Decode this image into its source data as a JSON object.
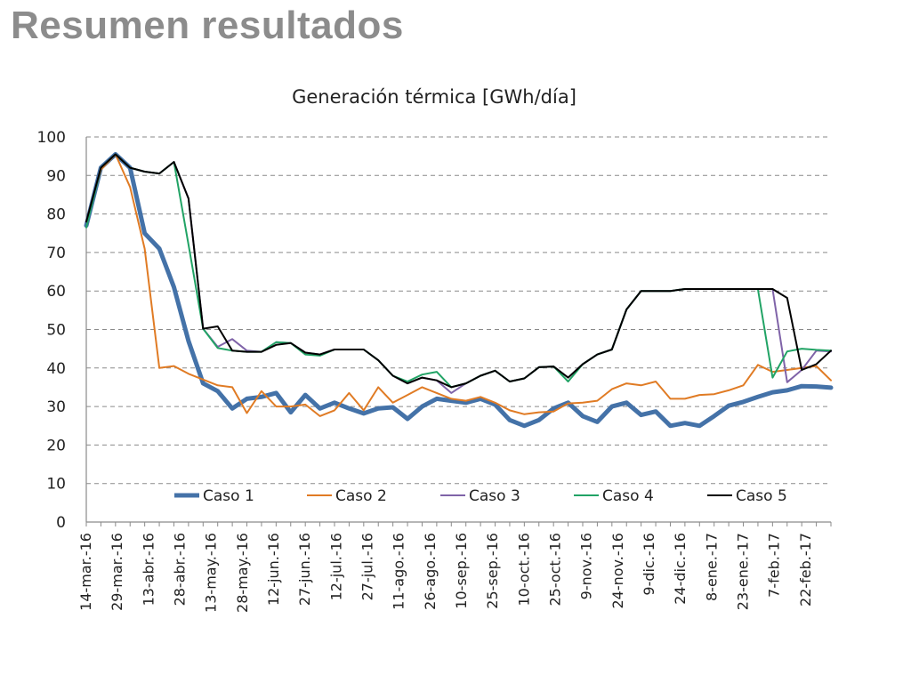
{
  "slide": {
    "title": "Resumen resultados"
  },
  "chart_data": {
    "type": "line",
    "title": "Generación térmica [GWh/día]",
    "xlabel": "",
    "ylabel": "",
    "ylim": [
      0,
      100
    ],
    "yticks": [
      0,
      10,
      20,
      30,
      40,
      50,
      60,
      70,
      80,
      90,
      100
    ],
    "grid": true,
    "legend_position": "bottom",
    "x_tick_labels": [
      "14-mar.-16",
      "29-mar.-16",
      "13-abr.-16",
      "28-abr.-16",
      "13-may.-16",
      "28-may.-16",
      "12-jun.-16",
      "27-jun.-16",
      "12-jul.-16",
      "27-jul.-16",
      "11-ago.-16",
      "26-ago.-16",
      "10-sep.-16",
      "25-sep.-16",
      "10-oct.-16",
      "25-oct.-16",
      "9-nov.-16",
      "24-nov.-16",
      "9-dic.-16",
      "24-dic.-16",
      "8-ene.-17",
      "23-ene.-17",
      "7-feb.-17",
      "22-feb.-17"
    ],
    "x": [
      "14-mar.-16",
      "21-mar.-16",
      "28-mar.-16",
      "4-abr.-16",
      "11-abr.-16",
      "18-abr.-16",
      "25-abr.-16",
      "2-may.-16",
      "9-may.-16",
      "16-may.-16",
      "23-may.-16",
      "30-may.-16",
      "6-jun.-16",
      "13-jun.-16",
      "20-jun.-16",
      "27-jun.-16",
      "4-jul.-16",
      "11-jul.-16",
      "18-jul.-16",
      "25-jul.-16",
      "1-ago.-16",
      "8-ago.-16",
      "15-ago.-16",
      "22-ago.-16",
      "29-ago.-16",
      "5-sep.-16",
      "12-sep.-16",
      "19-sep.-16",
      "26-sep.-16",
      "3-oct.-16",
      "10-oct.-16",
      "17-oct.-16",
      "24-oct.-16",
      "31-oct.-16",
      "7-nov.-16",
      "14-nov.-16",
      "21-nov.-16",
      "28-nov.-16",
      "5-dic.-16",
      "12-dic.-16",
      "19-dic.-16",
      "26-dic.-16",
      "2-ene.-17",
      "9-ene.-17",
      "16-ene.-17",
      "23-ene.-17",
      "30-ene.-17",
      "6-feb.-17",
      "13-feb.-17",
      "20-feb.-17",
      "27-feb.-17",
      "6-mar.-17"
    ],
    "series": [
      {
        "name": "Caso 1",
        "color": "#4472a8",
        "width": 5,
        "values": [
          77,
          92,
          95.5,
          92,
          75,
          71,
          61,
          47,
          36,
          34,
          29.5,
          32,
          32.5,
          33.5,
          28.5,
          33,
          29.5,
          31,
          29.5,
          28.2,
          29.5,
          29.8,
          26.8,
          30,
          32,
          31.5,
          31,
          32,
          30.5,
          26.5,
          25,
          26.5,
          29.5,
          31,
          27.5,
          26,
          30,
          31,
          27.8,
          28.7,
          25,
          25.7,
          25,
          27.5,
          30.2,
          31.2,
          32.5,
          33.7,
          34.2,
          35.3,
          35.2,
          34.9
        ]
      },
      {
        "name": "Caso 2",
        "color": "#e07b24",
        "width": 2,
        "values": [
          78,
          91.5,
          95.5,
          87,
          71,
          40,
          40.5,
          38.5,
          37,
          35.5,
          35,
          28.3,
          34,
          30,
          30,
          30.5,
          27.5,
          29,
          33.5,
          29,
          35,
          31,
          33,
          35,
          33.5,
          32,
          31.5,
          32.5,
          31,
          29,
          28,
          28.5,
          28.7,
          30.8,
          31,
          31.5,
          34.5,
          36,
          35.5,
          36.5,
          32,
          32,
          33,
          33.2,
          34.2,
          35.5,
          40.8,
          39,
          39.5,
          40,
          40.5,
          36.8
        ]
      },
      {
        "name": "Caso 3",
        "color": "#7f63a8",
        "width": 2,
        "values": [
          78,
          92,
          95.5,
          92,
          91,
          90.5,
          93.5,
          84,
          50.2,
          45.5,
          47.5,
          44.5,
          44.2,
          46.7,
          46.5,
          44,
          43.5,
          44.8,
          44.8,
          44.8,
          42,
          38,
          36,
          37.5,
          36.8,
          33.5,
          36,
          38,
          39.3,
          36.5,
          37.3,
          40.2,
          40.4,
          37.5,
          41,
          43.5,
          44.8,
          55.2,
          60,
          60,
          60,
          60.5,
          60.5,
          60.5,
          60.5,
          60.5,
          60.5,
          60.5,
          36.3,
          39.5,
          44.5,
          44.3
        ]
      },
      {
        "name": "Caso 4",
        "color": "#21a365",
        "width": 2,
        "values": [
          76.5,
          92,
          95.5,
          92,
          91,
          90.5,
          93.5,
          72,
          50.2,
          45.2,
          44.5,
          44.2,
          44.2,
          46.7,
          46.5,
          43.5,
          43.2,
          44.8,
          44.8,
          44.8,
          42,
          38,
          36.5,
          38.3,
          39,
          35,
          36,
          38,
          39.3,
          36.5,
          37.3,
          40.2,
          40.4,
          36.5,
          41,
          43.5,
          44.8,
          55.2,
          60,
          60,
          60,
          60.5,
          60.5,
          60.5,
          60.5,
          60.5,
          60.5,
          37.5,
          44.3,
          45,
          44.7,
          44.5
        ]
      },
      {
        "name": "Caso 5",
        "color": "#000000",
        "width": 2,
        "values": [
          78,
          92,
          95.5,
          92,
          91,
          90.5,
          93.5,
          84,
          50.2,
          50.8,
          44.5,
          44.2,
          44.2,
          46,
          46.5,
          44,
          43.5,
          44.8,
          44.8,
          44.8,
          42,
          38,
          36,
          37.5,
          36.8,
          35,
          36,
          38,
          39.3,
          36.5,
          37.3,
          40.2,
          40.4,
          37.5,
          41,
          43.5,
          44.8,
          55.2,
          60,
          60,
          60,
          60.5,
          60.5,
          60.5,
          60.5,
          60.5,
          60.5,
          60.5,
          58.2,
          39.5,
          41,
          44.5
        ]
      }
    ]
  }
}
